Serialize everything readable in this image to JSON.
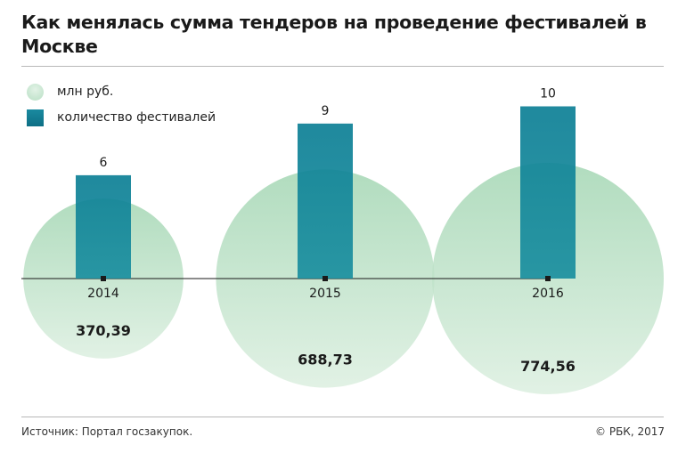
{
  "title": "Как менялась сумма тендеров на проведение фестивалей в Москве",
  "legend": {
    "circle_label": "млн руб.",
    "bar_label": "количество фестивалей"
  },
  "footer": {
    "source": "Источник: Портал госзакупок.",
    "copyright": "© РБК, 2017"
  },
  "colors": {
    "bar": "#0e7a90",
    "circle": "#a8d8b6",
    "axis": "#1a1a1a"
  },
  "chart_data": {
    "type": "bar",
    "categories": [
      "2014",
      "2015",
      "2016"
    ],
    "series": [
      {
        "name": "количество фестивалей",
        "values": [
          6,
          9,
          10
        ]
      },
      {
        "name": "млн руб.",
        "values": [
          370.39,
          688.73,
          774.56
        ]
      }
    ],
    "value_labels_count": [
      "6",
      "9",
      "10"
    ],
    "value_labels_sum": [
      "370,39",
      "688,73",
      "774,56"
    ]
  }
}
